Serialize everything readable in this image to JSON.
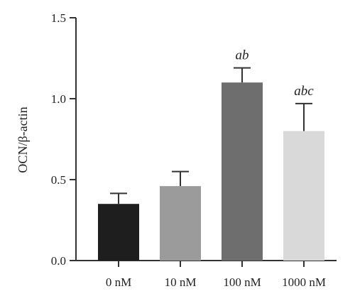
{
  "chart_data": {
    "type": "bar",
    "title": "",
    "xlabel": "",
    "ylabel": "OCN/β-actin",
    "ylim": [
      0,
      1.5
    ],
    "yticks": [
      "0.0",
      "0.5",
      "1.0",
      "1.5"
    ],
    "ytick_values": [
      0,
      0.5,
      1.0,
      1.5
    ],
    "categories": [
      "0 nM",
      "10 nM",
      "100 nM",
      "1000 nM"
    ],
    "values": [
      0.35,
      0.46,
      1.1,
      0.8
    ],
    "error_upper": [
      0.065,
      0.09,
      0.09,
      0.17
    ],
    "annotations": [
      "",
      "",
      "ab",
      "abc"
    ],
    "bar_colors": [
      "#1e1e1e",
      "#9b9b9b",
      "#6e6e6e",
      "#d9d9d9"
    ],
    "grid": false,
    "legend": "none"
  }
}
